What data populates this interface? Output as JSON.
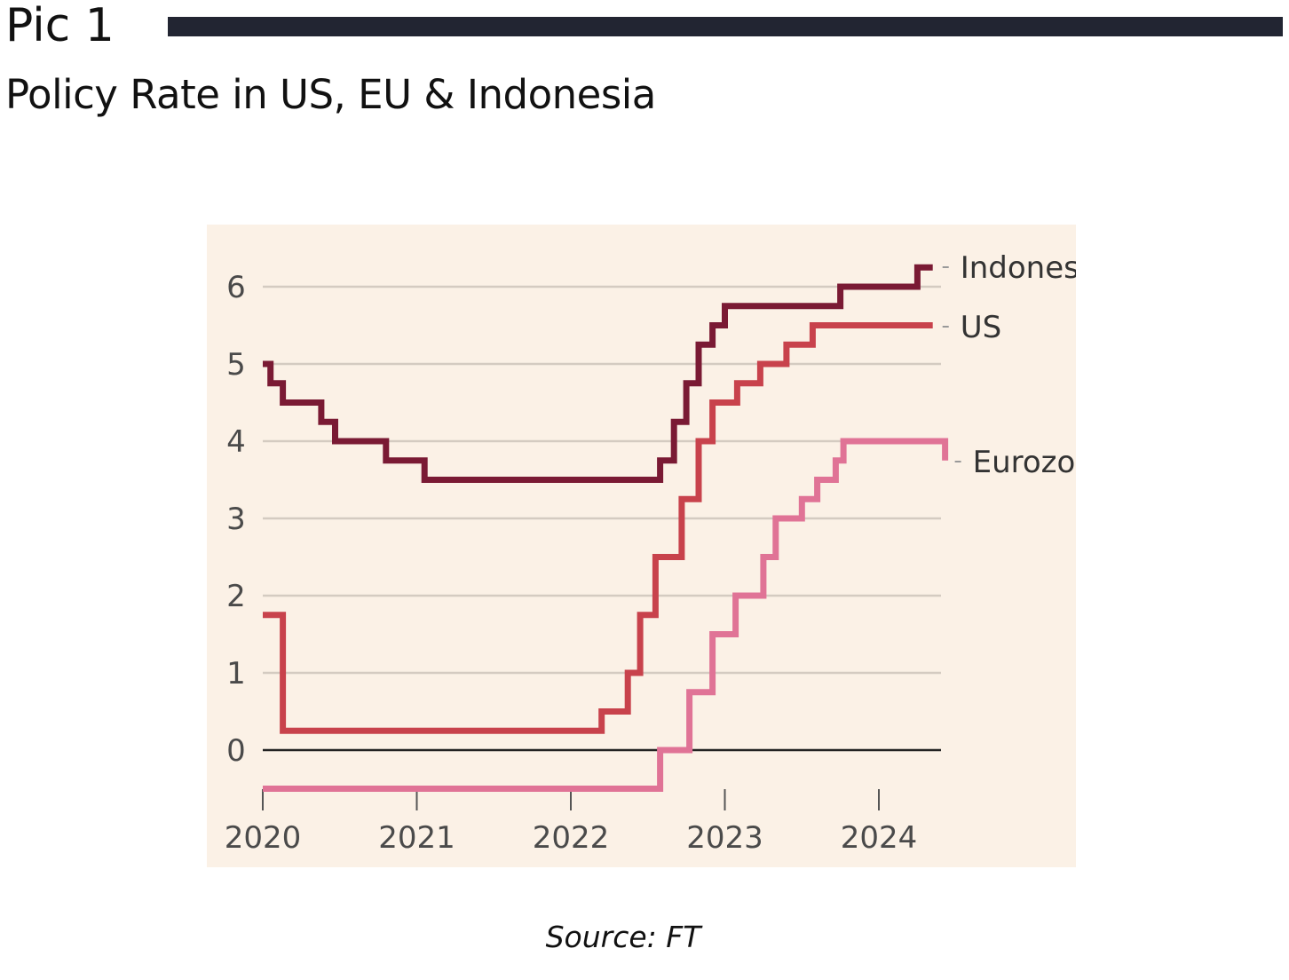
{
  "header": {
    "pic_label": "Pic 1",
    "title": "Policy Rate in US, EU & Indonesia"
  },
  "footer": {
    "source": "Source: FT"
  },
  "colors": {
    "bar": "#222532",
    "panel": "#fbf1e6",
    "grid": "#d4cbc1",
    "zero": "#222222",
    "indonesia": "#7a1a34",
    "us": "#c8424c",
    "eurozone": "#e07396"
  },
  "chart_data": {
    "type": "line",
    "step": true,
    "xlim": [
      2020,
      2024.43
    ],
    "ylim": [
      -0.5,
      6.5
    ],
    "yticks": [
      0,
      1,
      2,
      3,
      4,
      5,
      6
    ],
    "xticks": [
      2020,
      2021,
      2022,
      2023,
      2024
    ],
    "ytick_labels": [
      "0",
      "1",
      "2",
      "3",
      "4",
      "5",
      "6"
    ],
    "xtick_labels": [
      "2020",
      "2021",
      "2022",
      "2023",
      "2024"
    ],
    "grid": true,
    "series": [
      {
        "name": "Indonesia",
        "color": "#7a1a34",
        "x": [
          2020.0,
          2020.05,
          2020.13,
          2020.38,
          2020.47,
          2020.8,
          2021.05,
          2022.58,
          2022.67,
          2022.75,
          2022.83,
          2022.92,
          2023.0,
          2023.75,
          2024.25,
          2024.35
        ],
        "y": [
          5.0,
          4.75,
          4.5,
          4.25,
          4.0,
          3.75,
          3.5,
          3.75,
          4.25,
          4.75,
          5.25,
          5.5,
          5.75,
          6.0,
          6.25,
          6.25
        ]
      },
      {
        "name": "US",
        "color": "#c8424c",
        "x": [
          2020.0,
          2020.13,
          2022.2,
          2022.37,
          2022.45,
          2022.55,
          2022.72,
          2022.83,
          2022.92,
          2023.08,
          2023.23,
          2023.4,
          2023.57,
          2024.35
        ],
        "y": [
          1.75,
          0.25,
          0.5,
          1.0,
          1.75,
          2.5,
          3.25,
          4.0,
          4.5,
          4.75,
          5.0,
          5.25,
          5.5,
          5.5
        ]
      },
      {
        "name": "Eurozone",
        "color": "#e07396",
        "x": [
          2020.0,
          2022.58,
          2022.77,
          2022.92,
          2023.07,
          2023.25,
          2023.33,
          2023.5,
          2023.6,
          2023.72,
          2023.77,
          2024.43,
          2024.43
        ],
        "y": [
          -0.5,
          0.0,
          0.75,
          1.5,
          2.0,
          2.5,
          3.0,
          3.25,
          3.5,
          3.75,
          4.0,
          3.75,
          3.75
        ]
      }
    ]
  }
}
